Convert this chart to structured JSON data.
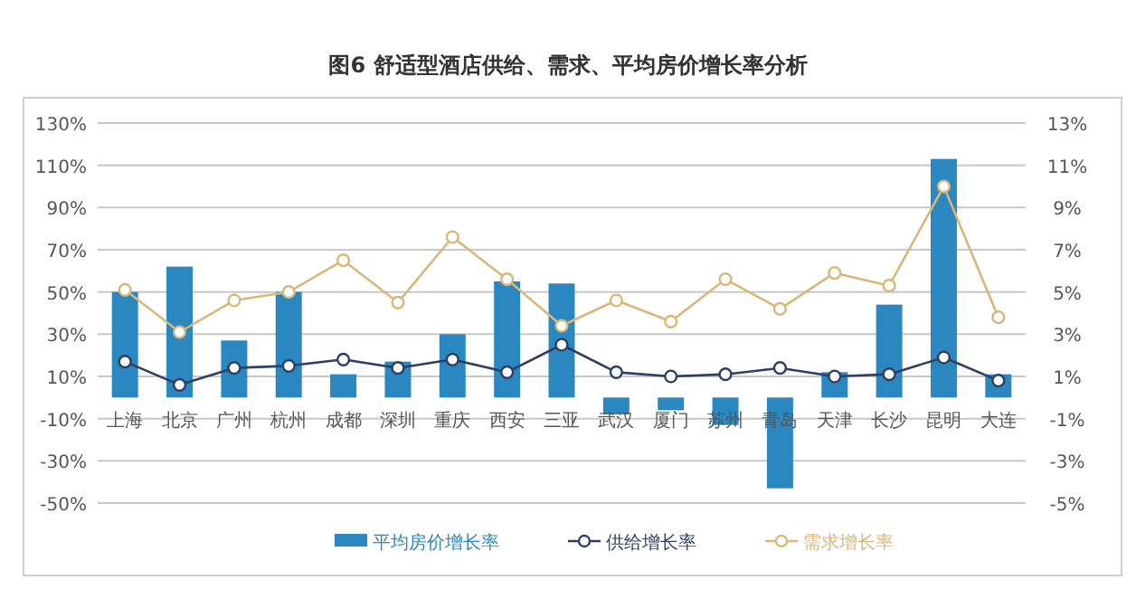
{
  "chart_data": {
    "type": "bar",
    "title": "图6 舒适型酒店供给、需求、平均房价增长率分析",
    "categories": [
      "上海",
      "北京",
      "广州",
      "杭州",
      "成都",
      "深圳",
      "重庆",
      "西安",
      "三亚",
      "武汉",
      "厦门",
      "苏州",
      "青岛",
      "天津",
      "长沙",
      "昆明",
      "大连"
    ],
    "series": [
      {
        "name": "平均房价增长率",
        "color": "#2a87c0",
        "values": [
          50,
          62,
          27,
          50,
          11,
          17,
          30,
          55,
          54,
          -8,
          -6,
          -13,
          -43,
          12,
          44,
          113,
          11
        ]
      },
      {
        "name": "供给增长率",
        "type": "line",
        "axis": "y2",
        "color": "#2e3f63",
        "marker": "circle",
        "values": [
          1.7,
          0.6,
          1.4,
          1.5,
          1.8,
          1.4,
          1.8,
          1.2,
          2.5,
          1.2,
          1.0,
          1.1,
          1.4,
          1.0,
          1.1,
          1.9,
          0.8
        ]
      },
      {
        "name": "需求增长率",
        "type": "line",
        "axis": "y2",
        "color": "#d9b77a",
        "marker": "circle",
        "values": [
          5.1,
          3.1,
          4.6,
          5.0,
          6.5,
          4.5,
          7.6,
          5.6,
          3.4,
          4.6,
          3.6,
          5.6,
          4.2,
          5.9,
          5.3,
          10.0,
          3.8
        ]
      }
    ],
    "ylim": [
      -50,
      130
    ],
    "yticks": [
      {
        "value": 130,
        "label": "130%"
      },
      {
        "value": 110,
        "label": "110%"
      },
      {
        "value": 90,
        "label": "90%"
      },
      {
        "value": 70,
        "label": "70%"
      },
      {
        "value": 50,
        "label": "50%"
      },
      {
        "value": 30,
        "label": "30%"
      },
      {
        "value": 10,
        "label": "10%"
      },
      {
        "value": -10,
        "label": "-10%"
      },
      {
        "value": -30,
        "label": "-30%"
      },
      {
        "value": -50,
        "label": "-50%"
      }
    ],
    "y2lim": [
      -5,
      13
    ],
    "y2ticks": [
      {
        "value": 13,
        "label": "13%"
      },
      {
        "value": 11,
        "label": "11%"
      },
      {
        "value": 9,
        "label": "9%"
      },
      {
        "value": 7,
        "label": "7%"
      },
      {
        "value": 5,
        "label": "5%"
      },
      {
        "value": 3,
        "label": "3%"
      },
      {
        "value": 1,
        "label": "1%"
      },
      {
        "value": -1,
        "label": "-1%"
      },
      {
        "value": -3,
        "label": "-3%"
      },
      {
        "value": -5,
        "label": "-5%"
      }
    ],
    "grid": "y",
    "legend": "bottom"
  }
}
